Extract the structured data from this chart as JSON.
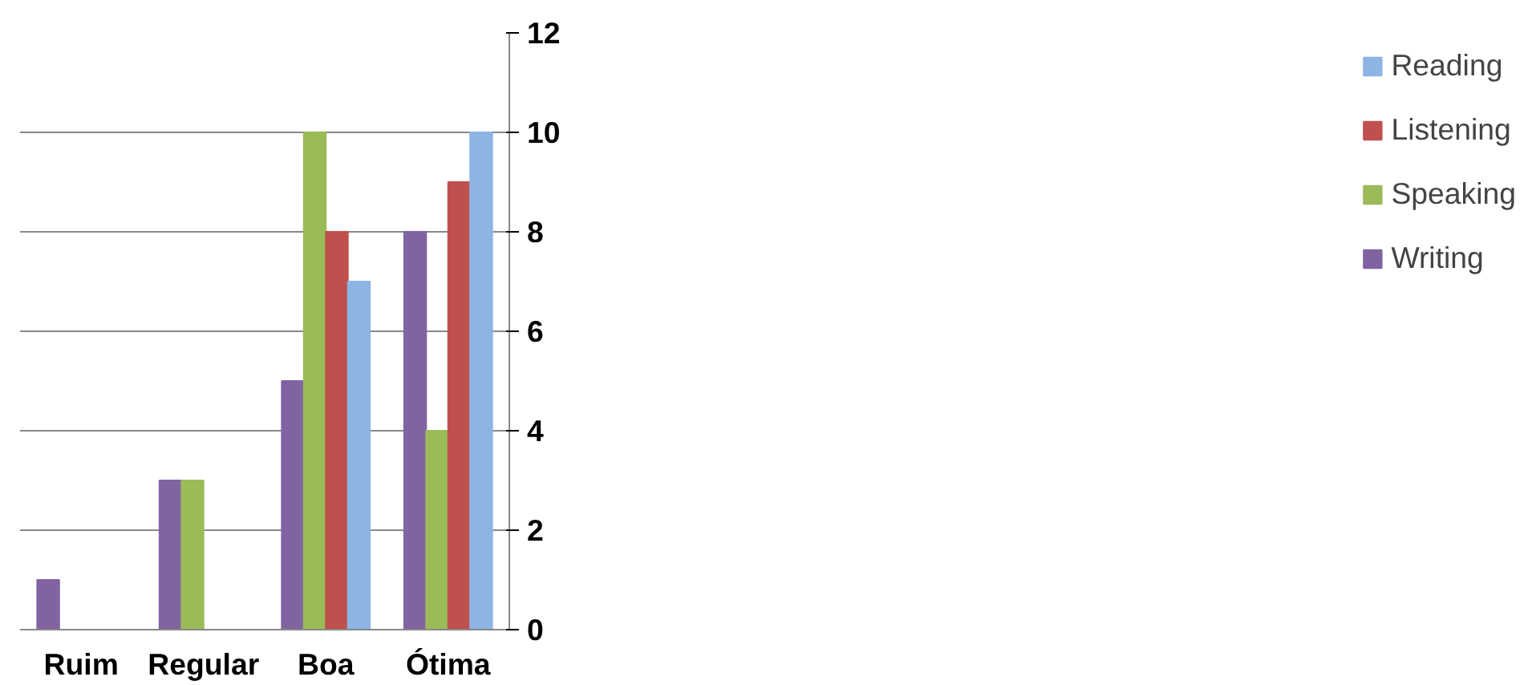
{
  "chart_data": {
    "type": "bar",
    "categories": [
      "Ruim",
      "Regular",
      "Boa",
      "Ótima"
    ],
    "series": [
      {
        "name": "Writing",
        "color": "#8064a2",
        "values": [
          1,
          3,
          5,
          8
        ]
      },
      {
        "name": "Speaking",
        "color": "#9bbb59",
        "values": [
          0,
          3,
          10,
          4
        ]
      },
      {
        "name": "Listening",
        "color": "#c0504d",
        "values": [
          0,
          0,
          8,
          9
        ]
      },
      {
        "name": "Reading",
        "color": "#8eb4e3",
        "values": [
          0,
          0,
          7,
          10
        ]
      }
    ],
    "ylim": [
      0,
      12
    ],
    "yticks": [
      0,
      2,
      4,
      6,
      8,
      10,
      12
    ],
    "grid": "y",
    "legend": "right"
  }
}
